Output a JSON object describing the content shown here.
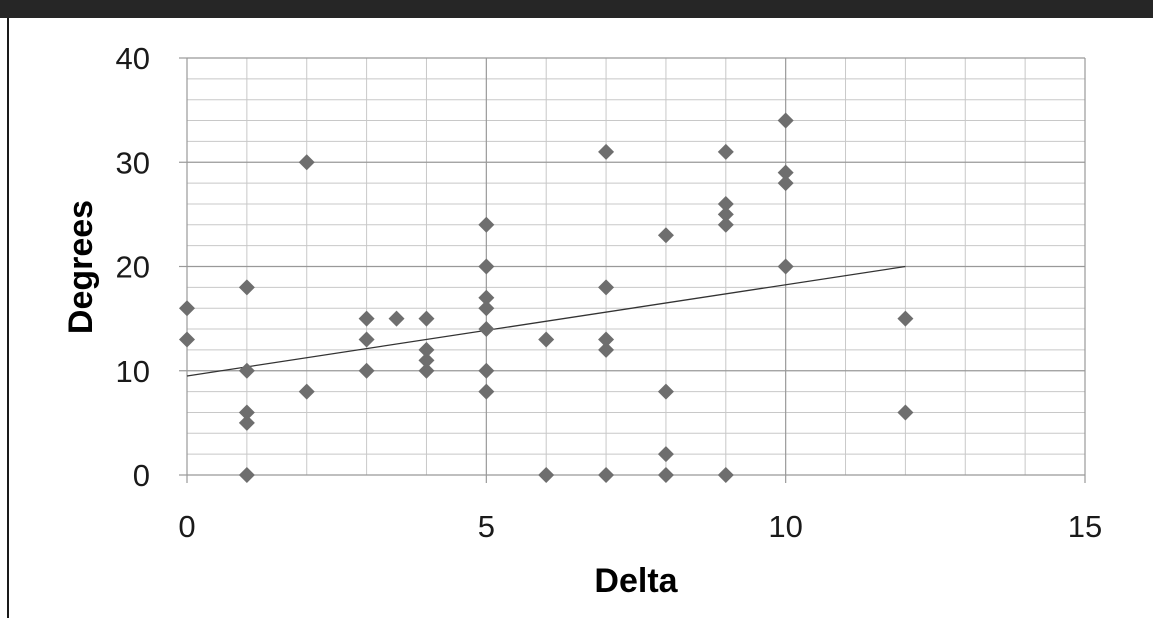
{
  "chart_data": {
    "type": "scatter",
    "title": "",
    "xlabel": "Delta",
    "ylabel": "Degrees",
    "xlim": [
      0,
      15
    ],
    "ylim": [
      0,
      40
    ],
    "x_ticks": [
      "0",
      "5",
      "10",
      "15"
    ],
    "y_ticks": [
      "0",
      "10",
      "20",
      "30",
      "40"
    ],
    "grid": true,
    "legend": "none",
    "marker": "diamond",
    "colors": {
      "points": "#6e6e6e",
      "trendline": "#333333",
      "grid_major": "#999999",
      "grid_minor": "#c8c8c8"
    },
    "series": [
      {
        "points": [
          [
            0,
            16
          ],
          [
            0,
            13
          ],
          [
            1,
            18
          ],
          [
            1,
            10
          ],
          [
            1,
            6
          ],
          [
            1,
            5
          ],
          [
            1,
            0
          ],
          [
            2,
            30
          ],
          [
            2,
            8
          ],
          [
            3,
            15
          ],
          [
            3,
            13
          ],
          [
            3,
            10
          ],
          [
            3.5,
            15
          ],
          [
            4,
            15
          ],
          [
            4,
            12
          ],
          [
            4,
            11
          ],
          [
            4,
            10
          ],
          [
            5,
            24
          ],
          [
            5,
            20
          ],
          [
            5,
            17
          ],
          [
            5,
            16
          ],
          [
            5,
            14
          ],
          [
            5,
            10
          ],
          [
            5,
            8
          ],
          [
            6,
            13
          ],
          [
            6,
            0
          ],
          [
            7,
            31
          ],
          [
            7,
            18
          ],
          [
            7,
            13
          ],
          [
            7,
            12
          ],
          [
            7,
            0
          ],
          [
            8,
            23
          ],
          [
            8,
            8
          ],
          [
            8,
            2
          ],
          [
            8,
            0
          ],
          [
            9,
            31
          ],
          [
            9,
            26
          ],
          [
            9,
            25
          ],
          [
            9,
            24
          ],
          [
            9,
            0
          ],
          [
            10,
            34
          ],
          [
            10,
            29
          ],
          [
            10,
            28
          ],
          [
            10,
            20
          ],
          [
            12,
            15
          ],
          [
            12,
            6
          ]
        ]
      }
    ],
    "trendline": {
      "x": [
        0,
        12
      ],
      "y": [
        9.5,
        20
      ]
    }
  }
}
